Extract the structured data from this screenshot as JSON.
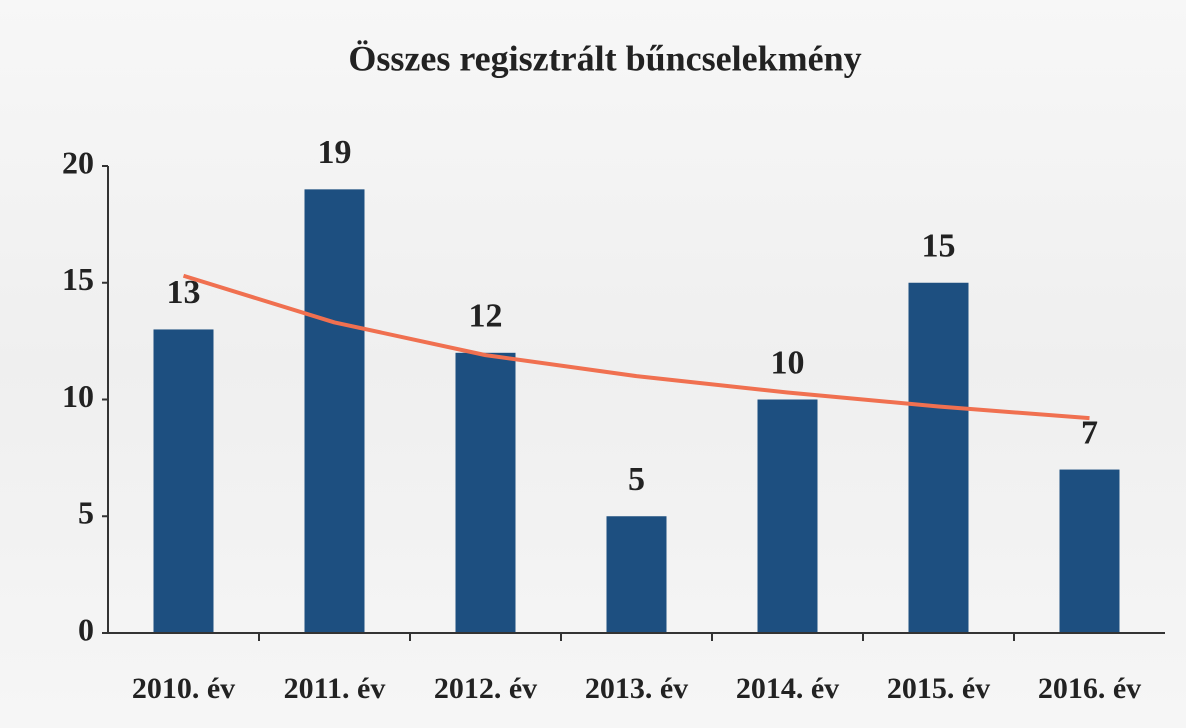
{
  "chart_data": {
    "type": "bar",
    "title": "Összes regisztrált bűncselekmény",
    "categories": [
      "2010. év",
      "2011. év",
      "2012. év",
      "2013. év",
      "2014. év",
      "2015. év",
      "2016. év"
    ],
    "values": [
      13,
      19,
      12,
      5,
      10,
      15,
      7
    ],
    "color": "#1d4f80",
    "trendline": {
      "color": "#f07050",
      "values": [
        15.3,
        13.3,
        11.9,
        11.0,
        10.3,
        9.7,
        9.2
      ]
    },
    "ylim": [
      0,
      20
    ],
    "yticks": [
      0,
      5,
      10,
      15,
      20
    ],
    "grid": false
  }
}
